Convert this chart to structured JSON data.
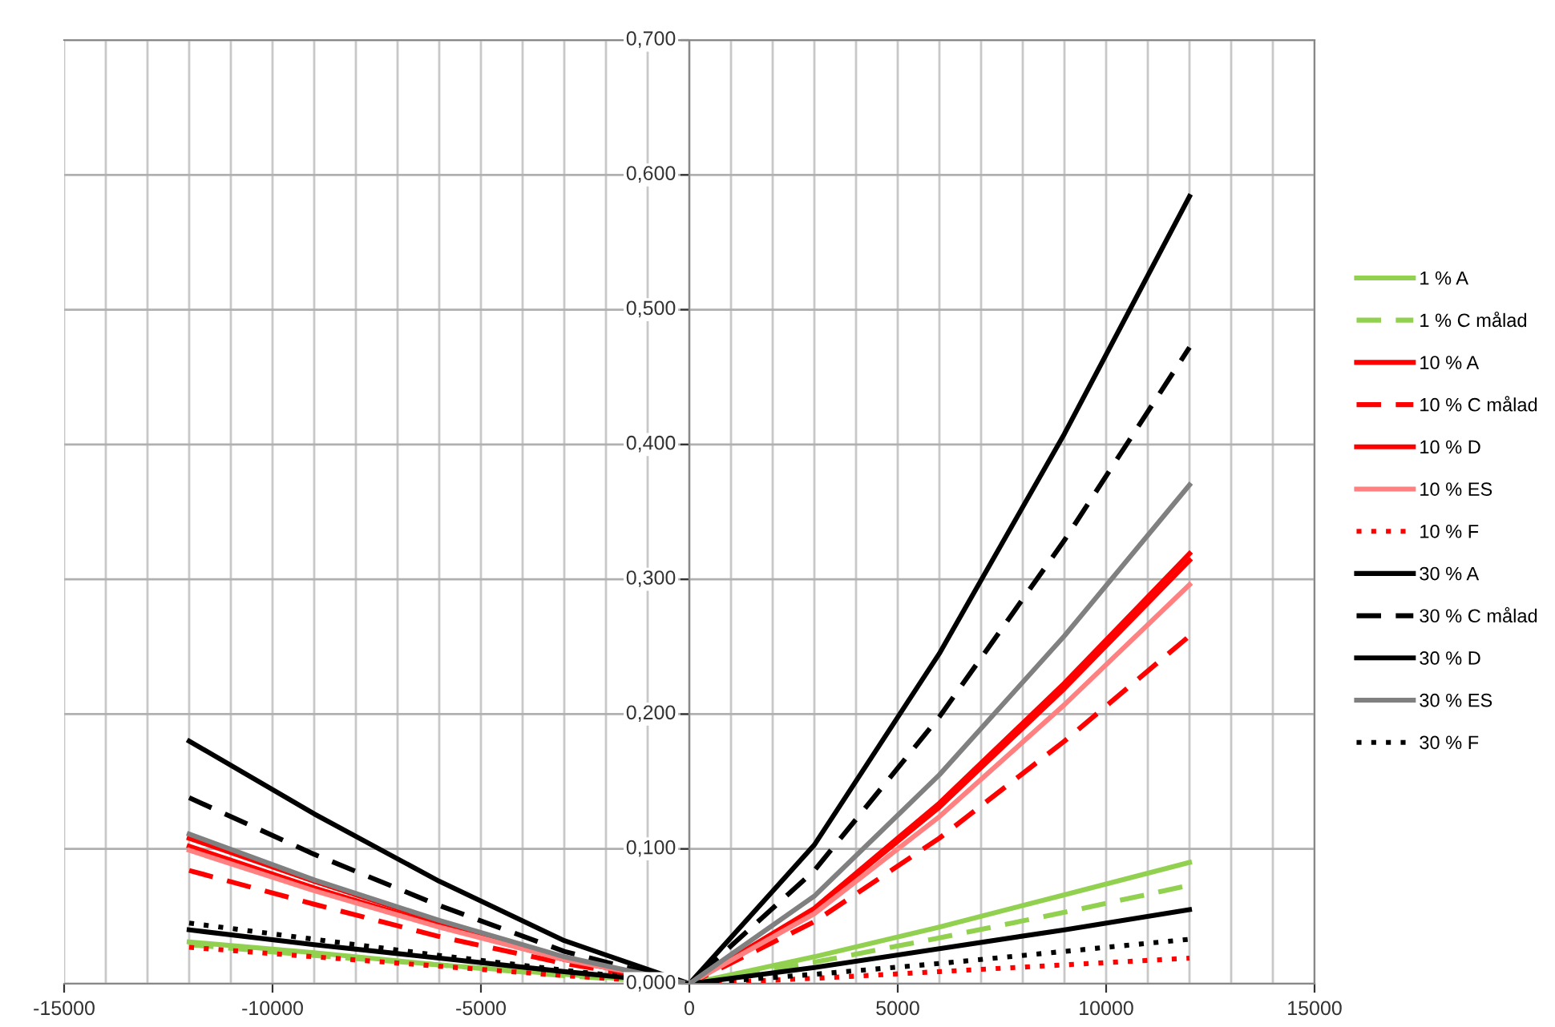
{
  "chart_data": {
    "type": "line",
    "x": [
      -12000,
      -9000,
      -6000,
      -3000,
      0,
      3000,
      6000,
      9000,
      12000
    ],
    "series": [
      {
        "name": "1 % A",
        "color": "#92d050",
        "line_style": "solid",
        "values": [
          0.031,
          0.023,
          0.014,
          0.007,
          0,
          0.02,
          0.042,
          0.066,
          0.09
        ]
      },
      {
        "name": "1 % C målad",
        "color": "#92d050",
        "line_style": "dashed",
        "values": [
          0.029,
          0.021,
          0.014,
          0.006,
          0,
          0.016,
          0.034,
          0.053,
          0.073
        ]
      },
      {
        "name": "10 % A",
        "color": "#ff0000",
        "line_style": "solid",
        "values": [
          0.102,
          0.071,
          0.043,
          0.018,
          0,
          0.056,
          0.134,
          0.223,
          0.319
        ]
      },
      {
        "name": "10 % C målad",
        "color": "#ff0000",
        "line_style": "dashed",
        "values": [
          0.084,
          0.059,
          0.035,
          0.015,
          0,
          0.046,
          0.108,
          0.18,
          0.258
        ]
      },
      {
        "name": "10 % D",
        "color": "#ff0000",
        "line_style": "solid",
        "values": [
          0.108,
          0.076,
          0.046,
          0.019,
          0,
          0.055,
          0.131,
          0.219,
          0.314
        ]
      },
      {
        "name": "10 % ES",
        "color": "#ff8080",
        "line_style": "solid",
        "values": [
          0.099,
          0.069,
          0.042,
          0.018,
          0,
          0.052,
          0.124,
          0.207,
          0.296
        ]
      },
      {
        "name": "10 % F",
        "color": "#ff0000",
        "line_style": "dotted",
        "values": [
          0.027,
          0.02,
          0.013,
          0.006,
          0,
          0.004,
          0.009,
          0.014,
          0.019
        ]
      },
      {
        "name": "30 % A",
        "color": "#000000",
        "line_style": "solid",
        "values": [
          0.18,
          0.126,
          0.076,
          0.032,
          0,
          0.103,
          0.245,
          0.408,
          0.584
        ]
      },
      {
        "name": "30 % C målad",
        "color": "#000000",
        "line_style": "dashed",
        "values": [
          0.138,
          0.096,
          0.058,
          0.024,
          0,
          0.084,
          0.198,
          0.329,
          0.472
        ]
      },
      {
        "name": "30 % D",
        "color": "#000000",
        "line_style": "solid",
        "values": [
          0.04,
          0.029,
          0.019,
          0.009,
          0,
          0.012,
          0.026,
          0.04,
          0.055
        ]
      },
      {
        "name": "30 % ES",
        "color": "#808080",
        "line_style": "solid",
        "values": [
          0.111,
          0.077,
          0.047,
          0.02,
          0,
          0.065,
          0.155,
          0.258,
          0.37
        ]
      },
      {
        "name": "30 % F",
        "color": "#000000",
        "line_style": "dotted",
        "values": [
          0.045,
          0.033,
          0.021,
          0.01,
          0,
          0.007,
          0.015,
          0.024,
          0.033
        ]
      }
    ],
    "xlim": [
      -15000,
      15000
    ],
    "xticks": [
      -15000,
      -10000,
      -5000,
      0,
      5000,
      10000,
      15000
    ],
    "ylim": [
      0,
      0.7
    ],
    "yticks": [
      {
        "value": 0,
        "label": "0,000"
      },
      {
        "value": 0.1,
        "label": "0,100"
      },
      {
        "value": 0.2,
        "label": "0,200"
      },
      {
        "value": 0.3,
        "label": "0,300"
      },
      {
        "value": 0.4,
        "label": "0,400"
      },
      {
        "value": 0.5,
        "label": "0,500"
      },
      {
        "value": 0.6,
        "label": "0,600"
      },
      {
        "value": 0.7,
        "label": "0,700"
      }
    ],
    "grid": true,
    "legend": "right",
    "marker": "none"
  }
}
